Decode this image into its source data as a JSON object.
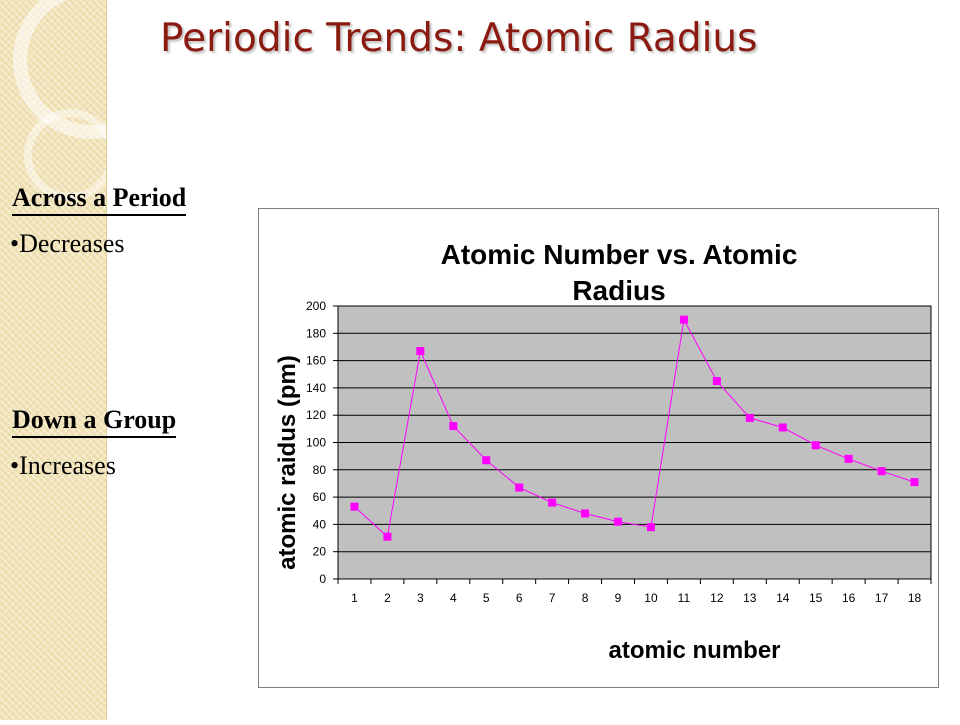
{
  "slide": {
    "title": "Periodic Trends: Atomic Radius",
    "across": {
      "heading": "Across a Period",
      "bullet": "Decreases"
    },
    "down": {
      "heading": "Down a Group",
      "bullet": "Increases"
    },
    "bullet_char": "•"
  },
  "chart_data": {
    "type": "line",
    "title_lines": [
      "Atomic Number vs. Atomic",
      "Radius"
    ],
    "xlabel": "atomic number",
    "ylabel": "atomic raidus (pm)",
    "x": [
      1,
      2,
      3,
      4,
      5,
      6,
      7,
      8,
      9,
      10,
      11,
      12,
      13,
      14,
      15,
      16,
      17,
      18
    ],
    "series": [
      {
        "values": [
          53,
          31,
          167,
          112,
          87,
          67,
          56,
          48,
          42,
          38,
          190,
          145,
          118,
          111,
          98,
          88,
          79,
          71
        ]
      }
    ],
    "ylim": [
      0,
      200
    ],
    "yticks": [
      0,
      20,
      40,
      60,
      80,
      100,
      120,
      140,
      160,
      180,
      200
    ],
    "grid": true,
    "legend": "none",
    "colors": {
      "line": "#ff00ff",
      "marker": "#ff00ff",
      "plot_bg": "#c0c0c0",
      "grid": "#000000"
    }
  }
}
